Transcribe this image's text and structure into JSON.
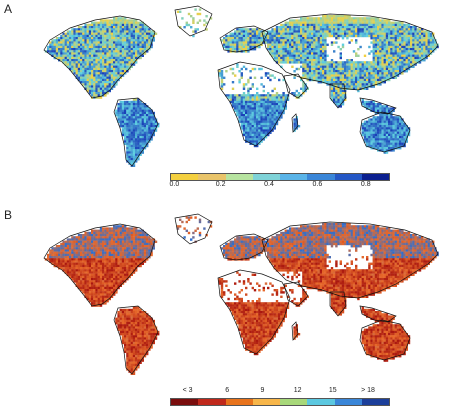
{
  "panels": [
    {
      "label": "A",
      "legend_ticks": [
        "0.0",
        "0.2",
        "0.4",
        "0.6",
        "0.8"
      ],
      "legend_colors": [
        "#f4d03f",
        "#e9c46a",
        "#b7e4a0",
        "#7fd3d8",
        "#5ab4e8",
        "#3a86d8",
        "#2457c5",
        "#0b1f8f"
      ],
      "palette": {
        "low": "#f4d03f",
        "mid": "#5fd0e0",
        "high": "#1a3fb8"
      }
    },
    {
      "label": "B",
      "legend_ticks": [
        "< 3",
        "6",
        "9",
        "12",
        "15",
        "> 18"
      ],
      "legend_colors": [
        "#7a0d0d",
        "#c0281b",
        "#e8731c",
        "#f7b64a",
        "#a8d87a",
        "#5cc8e0",
        "#3a86d8",
        "#1c3f9a"
      ],
      "palette": {
        "low": "#a9160f",
        "mid": "#e86a2b",
        "high": "#2d6fd0"
      }
    }
  ]
}
